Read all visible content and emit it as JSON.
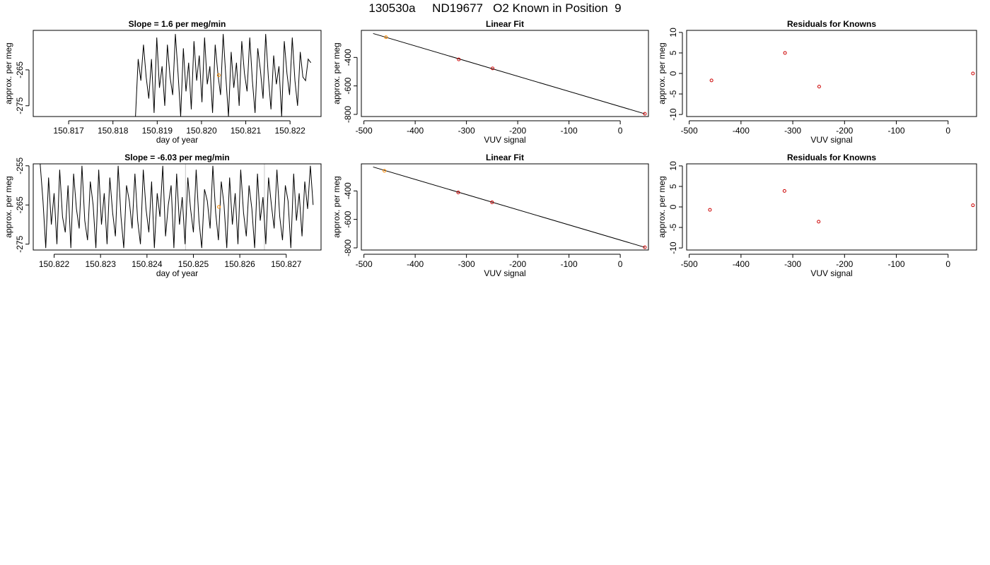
{
  "page_title": "130530a     ND19677   O2 Known in Position  9",
  "chart_data": [
    {
      "id": "p1",
      "type": "line",
      "title": "Slope =  1.6  per meg/min",
      "xlabel": "day of year",
      "ylabel": "approx. per meg",
      "xlim": [
        150.8162,
        150.8227
      ],
      "ylim": [
        -278,
        -254
      ],
      "xticks": [
        150.817,
        150.818,
        150.819,
        150.82,
        150.821,
        150.822
      ],
      "xtick_labels": [
        "150.817",
        "150.818",
        "150.819",
        "150.820",
        "150.821",
        "150.822"
      ],
      "yticks": [
        -275,
        -265
      ],
      "ytick_labels": [
        "-275",
        "-265"
      ],
      "grid": false,
      "vlines": [],
      "series": [
        {
          "color": "#000000",
          "x": [
            150.81851,
            150.81857,
            150.81863,
            150.81869,
            150.81875,
            150.81881,
            150.81887,
            150.81893,
            150.81899,
            150.81905,
            150.81911,
            150.81917,
            150.81923,
            150.81929,
            150.81935,
            150.81941,
            150.81947,
            150.81953,
            150.81959,
            150.81965,
            150.81971,
            150.81977,
            150.81983,
            150.81989,
            150.81995,
            150.82001,
            150.82007,
            150.82013,
            150.82019,
            150.82025,
            150.82031,
            150.82037,
            150.82043,
            150.82049,
            150.82055,
            150.82061,
            150.82067,
            150.82073,
            150.82079,
            150.82085,
            150.82091,
            150.82097,
            150.82103,
            150.82109,
            150.82115,
            150.82121,
            150.82127,
            150.82133,
            150.82139,
            150.82145,
            150.82151,
            150.82157,
            150.82163,
            150.82169,
            150.82175,
            150.82181,
            150.82187,
            150.82193,
            150.82199,
            150.82205,
            150.82211,
            150.82217,
            150.82223,
            150.82229,
            150.82235,
            150.82241,
            150.82247
          ],
          "y": [
            -278,
            -262,
            -268,
            -258,
            -267,
            -273,
            -262,
            -277,
            -256,
            -270,
            -264,
            -275,
            -258,
            -267,
            -272,
            -255,
            -266,
            -278,
            -259,
            -271,
            -263,
            -276,
            -257,
            -268,
            -261,
            -274,
            -256,
            -269,
            -264,
            -277,
            -258,
            -266,
            -272,
            -255,
            -267,
            -278,
            -260,
            -270,
            -263,
            -275,
            -257,
            -266,
            -271,
            -256,
            -268,
            -277,
            -259,
            -265,
            -273,
            -255,
            -267,
            -276,
            -261,
            -269,
            -264,
            -278,
            -257,
            -266,
            -272,
            -256,
            -268,
            -275,
            -260,
            -267,
            -268,
            -262,
            -263
          ]
        }
      ],
      "points": [
        {
          "x": 150.82039,
          "y": -266.5,
          "color": "#ff8c00"
        }
      ]
    },
    {
      "id": "p2",
      "type": "scatter",
      "title": "Linear Fit",
      "xlabel": "VUV signal",
      "ylabel": "approx. per meg",
      "xlim": [
        -505,
        55
      ],
      "ylim": [
        -815,
        -210
      ],
      "xticks": [
        -500,
        -400,
        -300,
        -200,
        -100,
        0
      ],
      "xtick_labels": [
        "-500",
        "-400",
        "-300",
        "-200",
        "-100",
        "0"
      ],
      "yticks": [
        -800,
        -600,
        -400
      ],
      "ytick_labels": [
        "-800",
        "-600",
        "-400"
      ],
      "grid": false,
      "fit_line": {
        "x": [
          -482,
          48
        ],
        "y": [
          -232,
          -796
        ]
      },
      "points": [
        {
          "x": -457,
          "y": -258,
          "color": "#ff8c00"
        },
        {
          "x": -315,
          "y": -414,
          "color": "#cc0000"
        },
        {
          "x": -249,
          "y": -477,
          "color": "#cc0000"
        },
        {
          "x": 48,
          "y": -796,
          "color": "#cc0000"
        }
      ]
    },
    {
      "id": "p3",
      "type": "scatter",
      "title": "Residuals for Knowns",
      "xlabel": "VUV signal",
      "ylabel": "approx. per meg",
      "xlim": [
        -505,
        55
      ],
      "ylim": [
        -10.5,
        10.5
      ],
      "xticks": [
        -500,
        -400,
        -300,
        -200,
        -100,
        0
      ],
      "xtick_labels": [
        "-500",
        "-400",
        "-300",
        "-200",
        "-100",
        "0"
      ],
      "yticks": [
        -10,
        -5,
        0,
        5,
        10
      ],
      "ytick_labels": [
        "-10",
        "-5",
        "0",
        "5",
        "10"
      ],
      "grid": false,
      "points": [
        {
          "x": -457,
          "y": -1.7,
          "color": "#cc0000"
        },
        {
          "x": -315,
          "y": 5.0,
          "color": "#cc0000"
        },
        {
          "x": -249,
          "y": -3.2,
          "color": "#cc0000"
        },
        {
          "x": 48,
          "y": 0.0,
          "color": "#cc0000"
        }
      ]
    },
    {
      "id": "p4",
      "type": "line",
      "title": "Slope =  -6.03  per meg/min",
      "xlabel": "day of year",
      "ylabel": "approx. per meg",
      "xlim": [
        150.82155,
        150.82775
      ],
      "ylim": [
        -276.5,
        -254.5
      ],
      "xticks": [
        150.822,
        150.823,
        150.824,
        150.825,
        150.826,
        150.827
      ],
      "xtick_labels": [
        "150.822",
        "150.823",
        "150.824",
        "150.825",
        "150.826",
        "150.827"
      ],
      "yticks": [
        -275,
        -265,
        -255
      ],
      "ytick_labels": [
        "-275",
        "-265",
        "-255"
      ],
      "grid": false,
      "vlines": [
        {
          "x": 150.82483,
          "color": "#c8c8c8"
        },
        {
          "x": 150.82653,
          "color": "#c8c8c8"
        }
      ],
      "series": [
        {
          "color": "#000000",
          "x": [
            150.8217,
            150.82176,
            150.82182,
            150.82188,
            150.82194,
            150.822,
            150.82206,
            150.82212,
            150.82218,
            150.82224,
            150.8223,
            150.82236,
            150.82242,
            150.82248,
            150.82254,
            150.8226,
            150.82266,
            150.82272,
            150.82278,
            150.82284,
            150.8229,
            150.82296,
            150.82302,
            150.82308,
            150.82314,
            150.8232,
            150.82326,
            150.82332,
            150.82338,
            150.82344,
            150.8235,
            150.82356,
            150.82362,
            150.82368,
            150.82374,
            150.8238,
            150.82386,
            150.82392,
            150.82398,
            150.82404,
            150.8241,
            150.82416,
            150.82422,
            150.82428,
            150.82434,
            150.8244,
            150.82446,
            150.82452,
            150.82458,
            150.82464,
            150.8247,
            150.82476,
            150.82482,
            150.82488,
            150.82494,
            150.825,
            150.82506,
            150.82512,
            150.82518,
            150.82524,
            150.8253,
            150.82536,
            150.82542,
            150.82548,
            150.82554,
            150.8256,
            150.82566,
            150.82572,
            150.82578,
            150.82584,
            150.8259,
            150.82596,
            150.82602,
            150.82608,
            150.82614,
            150.8262,
            150.82626,
            150.82632,
            150.82638,
            150.82644,
            150.8265,
            150.82656,
            150.82662,
            150.82668,
            150.82674,
            150.8268,
            150.82686,
            150.82692,
            150.82698,
            150.82704,
            150.8271,
            150.82716,
            150.82722,
            150.82728,
            150.82734,
            150.8274,
            150.82746,
            150.82752,
            150.82758
          ],
          "y": [
            -254.5,
            -264,
            -276,
            -258,
            -270,
            -262,
            -275,
            -256,
            -268,
            -272,
            -260,
            -276,
            -257,
            -266,
            -271,
            -255,
            -269,
            -274,
            -259,
            -265,
            -276,
            -256,
            -270,
            -262,
            -275,
            -258,
            -267,
            -273,
            -255,
            -268,
            -276,
            -260,
            -264,
            -271,
            -257,
            -269,
            -275,
            -256,
            -266,
            -272,
            -259,
            -276,
            -262,
            -268,
            -255,
            -273,
            -265,
            -260,
            -276,
            -257,
            -270,
            -263,
            -275,
            -258,
            -266,
            -272,
            -256,
            -269,
            -276,
            -261,
            -264,
            -271,
            -255,
            -267,
            -274,
            -259,
            -265,
            -276,
            -258,
            -270,
            -262,
            -275,
            -256,
            -267,
            -273,
            -260,
            -266,
            -276,
            -257,
            -269,
            -263,
            -275,
            -258,
            -265,
            -271,
            -256,
            -268,
            -274,
            -260,
            -264,
            -276,
            -257,
            -269,
            -262,
            -273,
            -259,
            -266,
            -255,
            -265
          ],
          "end_y": -265
        }
      ],
      "points": [
        {
          "x": 150.82555,
          "y": -265.5,
          "color": "#ff8c00"
        }
      ]
    },
    {
      "id": "p5",
      "type": "scatter",
      "title": "Linear Fit",
      "xlabel": "VUV signal",
      "ylabel": "approx. per meg",
      "xlim": [
        -505,
        55
      ],
      "ylim": [
        -815,
        -210
      ],
      "xticks": [
        -500,
        -400,
        -300,
        -200,
        -100,
        0
      ],
      "xtick_labels": [
        "-500",
        "-400",
        "-300",
        "-200",
        "-100",
        "0"
      ],
      "yticks": [
        -800,
        -600,
        -400
      ],
      "ytick_labels": [
        "-800",
        "-600",
        "-400"
      ],
      "grid": false,
      "fit_line": {
        "x": [
          -482,
          48
        ],
        "y": [
          -232,
          -796
        ]
      },
      "points": [
        {
          "x": -460,
          "y": -259,
          "color": "#ff8c00"
        },
        {
          "x": -316,
          "y": -411,
          "color": "#cc0000"
        },
        {
          "x": -250,
          "y": -480,
          "color": "#cc0000"
        },
        {
          "x": 48,
          "y": -796,
          "color": "#cc0000"
        }
      ]
    },
    {
      "id": "p6",
      "type": "scatter",
      "title": "Residuals for Knowns",
      "xlabel": "VUV signal",
      "ylabel": "approx. per meg",
      "xlim": [
        -505,
        55
      ],
      "ylim": [
        -10.5,
        10.5
      ],
      "xticks": [
        -500,
        -400,
        -300,
        -200,
        -100,
        0
      ],
      "xtick_labels": [
        "-500",
        "-400",
        "-300",
        "-200",
        "-100",
        "0"
      ],
      "yticks": [
        -10,
        -5,
        0,
        5,
        10
      ],
      "ytick_labels": [
        "-10",
        "-5",
        "0",
        "5",
        "10"
      ],
      "grid": false,
      "points": [
        {
          "x": -460,
          "y": -0.7,
          "color": "#cc0000"
        },
        {
          "x": -316,
          "y": 3.9,
          "color": "#cc0000"
        },
        {
          "x": -250,
          "y": -3.6,
          "color": "#cc0000"
        },
        {
          "x": 48,
          "y": 0.4,
          "color": "#cc0000"
        }
      ]
    }
  ]
}
